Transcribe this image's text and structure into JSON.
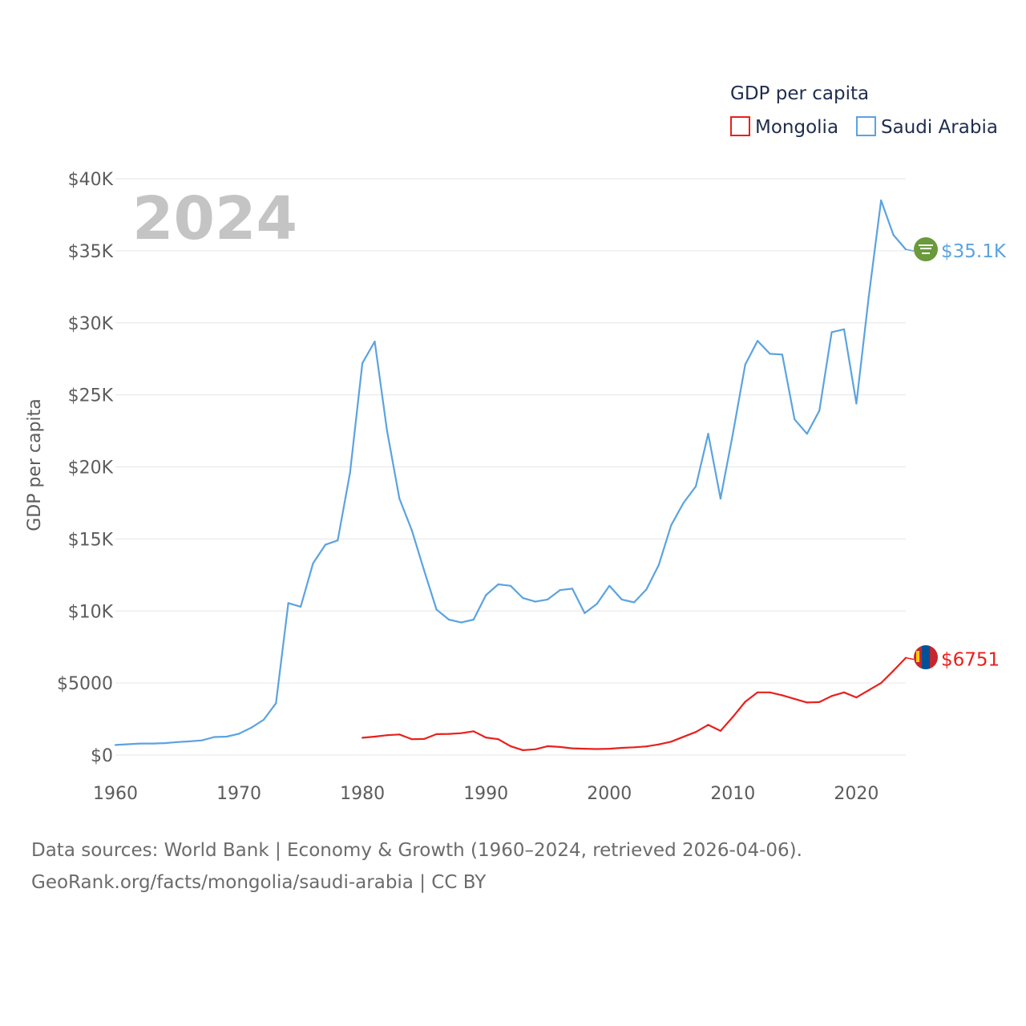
{
  "chart_data": {
    "type": "line",
    "title": "",
    "ylabel": "GDP per capita",
    "xlabel": "",
    "xlim": [
      1960,
      2024
    ],
    "ylim": [
      0,
      40000
    ],
    "year_watermark": "2024",
    "legend": {
      "title": "GDP per capita",
      "placement": "top-right",
      "entries": [
        "Mongolia",
        "Saudi Arabia"
      ]
    },
    "yticks": [
      {
        "value": 0,
        "label": "$0"
      },
      {
        "value": 5000,
        "label": "$5000"
      },
      {
        "value": 10000,
        "label": "$10K"
      },
      {
        "value": 15000,
        "label": "$15K"
      },
      {
        "value": 20000,
        "label": "$20K"
      },
      {
        "value": 25000,
        "label": "$25K"
      },
      {
        "value": 30000,
        "label": "$30K"
      },
      {
        "value": 35000,
        "label": "$35K"
      },
      {
        "value": 40000,
        "label": "$40K"
      }
    ],
    "xticks": [
      {
        "value": 1960,
        "label": "1960"
      },
      {
        "value": 1970,
        "label": "1970"
      },
      {
        "value": 1980,
        "label": "1980"
      },
      {
        "value": 1990,
        "label": "1990"
      },
      {
        "value": 2000,
        "label": "2000"
      },
      {
        "value": 2010,
        "label": "2010"
      },
      {
        "value": 2020,
        "label": "2020"
      }
    ],
    "series": [
      {
        "name": "Saudi Arabia",
        "color": "#5ba3e0",
        "end_label": "$35.1K",
        "flag_icon": "saudi-arabia-flag-icon",
        "x": [
          1960,
          1961,
          1962,
          1963,
          1964,
          1965,
          1966,
          1967,
          1968,
          1969,
          1970,
          1971,
          1972,
          1973,
          1974,
          1975,
          1976,
          1977,
          1978,
          1979,
          1980,
          1981,
          1982,
          1983,
          1984,
          1985,
          1986,
          1987,
          1988,
          1989,
          1990,
          1991,
          1992,
          1993,
          1994,
          1995,
          1996,
          1997,
          1998,
          1999,
          2000,
          2001,
          2002,
          2003,
          2004,
          2005,
          2006,
          2007,
          2008,
          2009,
          2010,
          2011,
          2012,
          2013,
          2014,
          2015,
          2016,
          2017,
          2018,
          2019,
          2020,
          2021,
          2022,
          2023,
          2024
        ],
        "values": [
          700,
          750,
          800,
          800,
          830,
          900,
          950,
          1020,
          1250,
          1280,
          1480,
          1900,
          2450,
          3600,
          10550,
          10300,
          13300,
          14600,
          14900,
          19600,
          27200,
          28700,
          22500,
          17800,
          15600,
          12800,
          10100,
          9400,
          9200,
          9400,
          11100,
          11850,
          11750,
          10900,
          10650,
          10800,
          11450,
          11550,
          9850,
          10500,
          11750,
          10800,
          10600,
          11500,
          13200,
          15950,
          17500,
          18650,
          22300,
          17800,
          22300,
          27100,
          28750,
          27850,
          27800,
          23300,
          22300,
          23900,
          29350,
          29550,
          24400,
          31800,
          38500,
          36100,
          35100
        ]
      },
      {
        "name": "Mongolia",
        "color": "#e8201c",
        "end_label": "$6751",
        "flag_icon": "mongolia-flag-icon",
        "x": [
          1980,
          1981,
          1982,
          1983,
          1984,
          1985,
          1986,
          1987,
          1988,
          1989,
          1990,
          1991,
          1992,
          1993,
          1994,
          1995,
          1996,
          1997,
          1998,
          1999,
          2000,
          2001,
          2002,
          2003,
          2004,
          2005,
          2006,
          2007,
          2008,
          2009,
          2010,
          2011,
          2012,
          2013,
          2014,
          2015,
          2016,
          2017,
          2018,
          2019,
          2020,
          2021,
          2022,
          2023,
          2024
        ],
        "values": [
          1200,
          1280,
          1380,
          1430,
          1100,
          1120,
          1450,
          1470,
          1520,
          1650,
          1220,
          1100,
          620,
          340,
          400,
          620,
          560,
          470,
          440,
          420,
          440,
          500,
          540,
          600,
          740,
          930,
          1270,
          1600,
          2100,
          1680,
          2650,
          3700,
          4350,
          4350,
          4150,
          3900,
          3650,
          3680,
          4100,
          4350,
          4000,
          4500,
          5000,
          5850,
          6751
        ]
      }
    ]
  },
  "footer": {
    "line1": "Data sources: World Bank | Economy & Growth (1960–2024, retrieved 2026-04-06).",
    "line2": "GeoRank.org/facts/mongolia/saudi-arabia | CC BY"
  }
}
